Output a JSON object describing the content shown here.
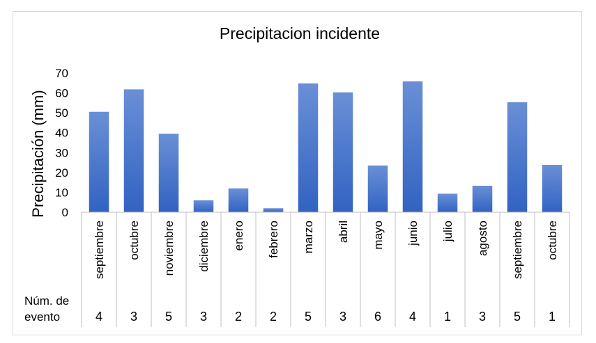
{
  "chart_data": {
    "type": "bar",
    "title": "Precipitacion incidente",
    "xlabel": "",
    "ylabel": "Precipitación (mm)",
    "ylim": [
      0,
      70
    ],
    "yticks": [
      0,
      10,
      20,
      30,
      40,
      50,
      60,
      70
    ],
    "grid": false,
    "legend": "none",
    "bar_color": "#4472c4",
    "categories": [
      "septiembre",
      "octubre",
      "noviembre",
      "diciembre",
      "enero",
      "febrero",
      "marzo",
      "abril",
      "mayo",
      "junio",
      "julio",
      "agosto",
      "septiembre",
      "octubre"
    ],
    "values": [
      50.5,
      61.8,
      39.5,
      6,
      12,
      2,
      64.8,
      60.3,
      23.5,
      65.8,
      9.3,
      13.3,
      55.3,
      23.8
    ],
    "table_row": {
      "label": "Núm. de evento",
      "values": [
        4,
        3,
        5,
        3,
        2,
        2,
        5,
        3,
        6,
        4,
        1,
        3,
        5,
        1
      ]
    }
  }
}
